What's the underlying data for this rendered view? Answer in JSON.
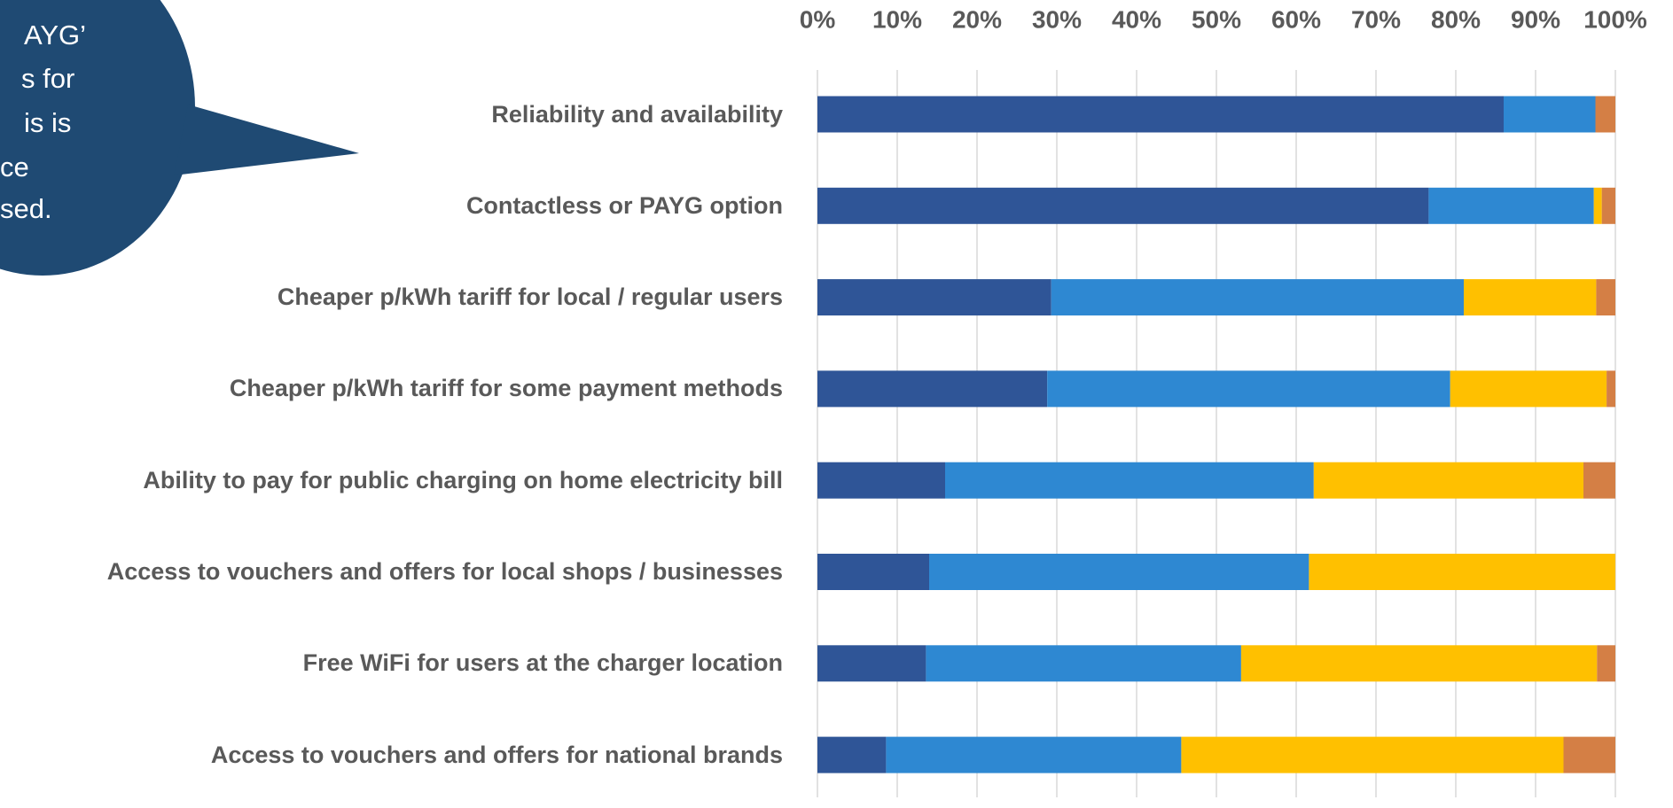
{
  "annotation": {
    "lines": [
      "AYG’",
      "s for",
      "is is",
      "ce",
      "sed."
    ]
  },
  "chart_data": {
    "type": "stacked-barh",
    "categories": [
      "Reliability and availability",
      "Contactless or PAYG option",
      "Cheaper p/kWh tariff for local / regular users",
      "Cheaper p/kWh tariff for some payment methods",
      "Ability to pay for public charging on home electricity bill",
      "Access to vouchers and offers for local shops / businesses",
      "Free WiFi for users at the charger location",
      "Access to vouchers and offers for national brands"
    ],
    "series": [
      {
        "color": "#2f5597",
        "values": [
          86,
          76.6,
          29.3,
          28.8,
          16,
          14,
          13.6,
          8.6
        ]
      },
      {
        "color": "#2e88d2",
        "values": [
          11.5,
          20.7,
          51.7,
          50.5,
          46.2,
          47.6,
          39.5,
          37
        ]
      },
      {
        "color": "#ffc000",
        "values": [
          0,
          1,
          16.6,
          19.6,
          33.8,
          38.4,
          44.6,
          47.9
        ]
      },
      {
        "color": "#d47f45",
        "values": [
          2.5,
          1.7,
          2.4,
          1.1,
          4,
          0,
          2.3,
          6.5
        ]
      }
    ],
    "xlim": [
      0,
      100
    ],
    "xticks": [
      {
        "value": 0,
        "label": "0%"
      },
      {
        "value": 10,
        "label": "10%"
      },
      {
        "value": 20,
        "label": "20%"
      },
      {
        "value": 30,
        "label": "30%"
      },
      {
        "value": 40,
        "label": "40%"
      },
      {
        "value": 50,
        "label": "50%"
      },
      {
        "value": 60,
        "label": "60%"
      },
      {
        "value": 70,
        "label": "70%"
      },
      {
        "value": 80,
        "label": "80%"
      },
      {
        "value": 90,
        "label": "90%"
      },
      {
        "value": 100,
        "label": "100%"
      }
    ],
    "grid": true
  }
}
